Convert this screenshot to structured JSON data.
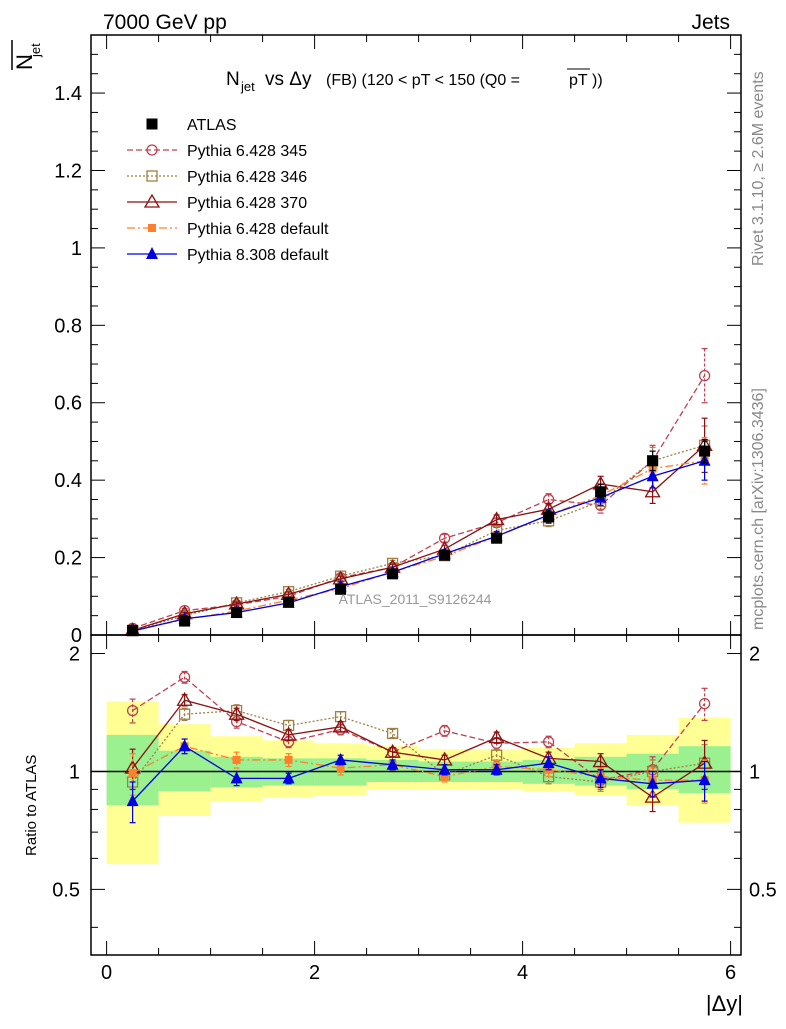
{
  "header": {
    "left": "7000 GeV pp",
    "right": "Jets",
    "right_margin_top": "Rivet 3.1.10, ≥ 2.6M events",
    "right_margin_bottom": "mcplots.cern.ch [arXiv:1306.3436]",
    "watermark": "ATLAS_2011_S9126244"
  },
  "chart_data": [
    {
      "type": "line",
      "title": "N_jet vs Δy (FB) (120 < pT < 150 (Q0 = pT))",
      "ylabel": "N_jet (overline)",
      "ylim": [
        0,
        1.55
      ],
      "xlim": [
        -0.15,
        6.1
      ],
      "yticks": [
        0,
        0.2,
        0.4,
        0.6,
        0.8,
        1,
        1.2,
        1.4
      ],
      "ytick_labels": [
        "0",
        "0.2",
        "0.4",
        "0.6",
        "0.8",
        "1",
        "1.2",
        "1.4"
      ],
      "legend_position": "top-left",
      "x": [
        0.25,
        0.75,
        1.25,
        1.75,
        2.25,
        2.75,
        3.25,
        3.75,
        4.25,
        4.75,
        5.25,
        5.75
      ],
      "series": [
        {
          "name": "ATLAS",
          "color": "#000000",
          "marker": "square-filled",
          "dash": "none",
          "line": false,
          "values": [
            0.012,
            0.036,
            0.058,
            0.085,
            0.118,
            0.158,
            0.206,
            0.25,
            0.305,
            0.37,
            0.45,
            0.475
          ],
          "err": [
            0.005,
            0.006,
            0.006,
            0.008,
            0.01,
            0.01,
            0.012,
            0.012,
            0.016,
            0.02,
            0.025,
            0.03
          ]
        },
        {
          "name": "Pythia 6.428 345",
          "color": "#c04050",
          "marker": "circle-open",
          "dash": "6,3",
          "values": [
            0.017,
            0.063,
            0.078,
            0.1,
            0.148,
            0.175,
            0.25,
            0.29,
            0.35,
            0.335,
            0.45,
            0.67
          ],
          "err": [
            0.002,
            0.005,
            0.005,
            0.006,
            0.007,
            0.008,
            0.01,
            0.012,
            0.015,
            0.02,
            0.04,
            0.07
          ]
        },
        {
          "name": "Pythia 6.428 346",
          "color": "#a08040",
          "marker": "square-open",
          "dash": "2,2",
          "values": [
            0.011,
            0.05,
            0.083,
            0.112,
            0.152,
            0.185,
            0.205,
            0.27,
            0.295,
            0.345,
            0.45,
            0.49
          ],
          "err": [
            0.002,
            0.004,
            0.005,
            0.006,
            0.007,
            0.008,
            0.01,
            0.012,
            0.015,
            0.02,
            0.035,
            0.05
          ]
        },
        {
          "name": "Pythia 6.428 370",
          "color": "#8b1010",
          "marker": "triangle-open",
          "dash": "none",
          "values": [
            0.012,
            0.055,
            0.08,
            0.105,
            0.145,
            0.175,
            0.222,
            0.298,
            0.325,
            0.39,
            0.37,
            0.49
          ],
          "err": [
            0.002,
            0.004,
            0.005,
            0.006,
            0.007,
            0.008,
            0.01,
            0.012,
            0.015,
            0.02,
            0.03,
            0.07
          ]
        },
        {
          "name": "Pythia 6.428 default",
          "color": "#ff7f2a",
          "marker": "square-filled-small",
          "dash": "8,3,2,3",
          "values": [
            0.012,
            0.04,
            0.062,
            0.09,
            0.12,
            0.163,
            0.203,
            0.255,
            0.31,
            0.36,
            0.43,
            0.45
          ],
          "err": [
            0.002,
            0.004,
            0.005,
            0.006,
            0.007,
            0.008,
            0.01,
            0.012,
            0.015,
            0.02,
            0.03,
            0.06
          ]
        },
        {
          "name": "Pythia 8.308 default",
          "color": "#0000e0",
          "marker": "triangle-filled",
          "dash": "none",
          "values": [
            0.01,
            0.042,
            0.058,
            0.083,
            0.125,
            0.162,
            0.21,
            0.255,
            0.31,
            0.355,
            0.41,
            0.45
          ],
          "err": [
            0.002,
            0.004,
            0.005,
            0.006,
            0.007,
            0.008,
            0.01,
            0.012,
            0.015,
            0.02,
            0.03,
            0.05
          ]
        }
      ]
    },
    {
      "type": "line",
      "ylabel": "Ratio to ATLAS",
      "xlabel": "|Δy|",
      "ylim": [
        0.34,
        2.23
      ],
      "xlim": [
        -0.15,
        6.1
      ],
      "yticks": [
        0.5,
        1,
        2
      ],
      "ytick_labels": [
        "0.5",
        "1",
        "2"
      ],
      "xticks": [
        0,
        2,
        4,
        6
      ],
      "xtick_labels": [
        "0",
        "2",
        "4",
        "6"
      ],
      "reference_line": 1,
      "band_edges": [
        0,
        0.5,
        1,
        1.5,
        2,
        2.5,
        3,
        3.5,
        4,
        4.5,
        5,
        5.5,
        6
      ],
      "band_inner": [
        [
          0.82,
          1.24
        ],
        [
          0.89,
          1.13
        ],
        [
          0.91,
          1.09
        ],
        [
          0.92,
          1.08
        ],
        [
          0.92,
          1.08
        ],
        [
          0.94,
          1.07
        ],
        [
          0.94,
          1.06
        ],
        [
          0.94,
          1.06
        ],
        [
          0.93,
          1.07
        ],
        [
          0.92,
          1.09
        ],
        [
          0.9,
          1.11
        ],
        [
          0.88,
          1.16
        ]
      ],
      "band_outer": [
        [
          0.58,
          1.51
        ],
        [
          0.77,
          1.32
        ],
        [
          0.84,
          1.23
        ],
        [
          0.86,
          1.2
        ],
        [
          0.87,
          1.18
        ],
        [
          0.9,
          1.16
        ],
        [
          0.9,
          1.14
        ],
        [
          0.9,
          1.14
        ],
        [
          0.89,
          1.15
        ],
        [
          0.87,
          1.18
        ],
        [
          0.82,
          1.24
        ],
        [
          0.74,
          1.37
        ]
      ],
      "x": [
        0.25,
        0.75,
        1.25,
        1.75,
        2.25,
        2.75,
        3.25,
        3.75,
        4.25,
        4.75,
        5.25,
        5.75
      ],
      "series": [
        {
          "name": "Pythia 6.428 345",
          "color": "#c04050",
          "marker": "circle-open",
          "dash": "6,3",
          "values": [
            1.43,
            1.74,
            1.34,
            1.19,
            1.28,
            1.12,
            1.27,
            1.18,
            1.19,
            0.95,
            1.01,
            1.49
          ],
          "err": [
            0.1,
            0.06,
            0.05,
            0.04,
            0.04,
            0.03,
            0.04,
            0.04,
            0.04,
            0.05,
            0.08,
            0.14
          ]
        },
        {
          "name": "Pythia 6.428 346",
          "color": "#a08040",
          "marker": "square-open",
          "dash": "2,2",
          "values": [
            0.94,
            1.4,
            1.43,
            1.31,
            1.38,
            1.25,
            0.98,
            1.1,
            0.97,
            0.94,
            1.0,
            1.05
          ],
          "err": [
            0.1,
            0.05,
            0.05,
            0.04,
            0.04,
            0.03,
            0.03,
            0.04,
            0.04,
            0.05,
            0.07,
            0.12
          ]
        },
        {
          "name": "Pythia 6.428 370",
          "color": "#8b1010",
          "marker": "triangle-open",
          "dash": "none",
          "values": [
            1.02,
            1.52,
            1.4,
            1.24,
            1.3,
            1.12,
            1.07,
            1.22,
            1.08,
            1.06,
            0.86,
            1.05
          ],
          "err": [
            0.12,
            0.05,
            0.05,
            0.04,
            0.04,
            0.03,
            0.03,
            0.04,
            0.04,
            0.05,
            0.07,
            0.15
          ]
        },
        {
          "name": "Pythia 6.428 default",
          "color": "#ff7f2a",
          "marker": "square-filled-small",
          "dash": "8,3,2,3",
          "values": [
            0.99,
            1.16,
            1.07,
            1.07,
            1.02,
            1.04,
            0.97,
            1.03,
            1.01,
            0.97,
            0.95,
            0.95
          ],
          "err": [
            0.12,
            0.05,
            0.05,
            0.04,
            0.04,
            0.03,
            0.03,
            0.04,
            0.04,
            0.05,
            0.07,
            0.12
          ]
        },
        {
          "name": "Pythia 8.308 default",
          "color": "#0000e0",
          "marker": "triangle-filled",
          "dash": "none",
          "values": [
            0.84,
            1.16,
            0.96,
            0.96,
            1.07,
            1.04,
            1.01,
            1.01,
            1.05,
            0.96,
            0.93,
            0.95
          ],
          "err": [
            0.1,
            0.05,
            0.04,
            0.03,
            0.03,
            0.03,
            0.03,
            0.03,
            0.04,
            0.05,
            0.07,
            0.11
          ]
        }
      ]
    }
  ]
}
